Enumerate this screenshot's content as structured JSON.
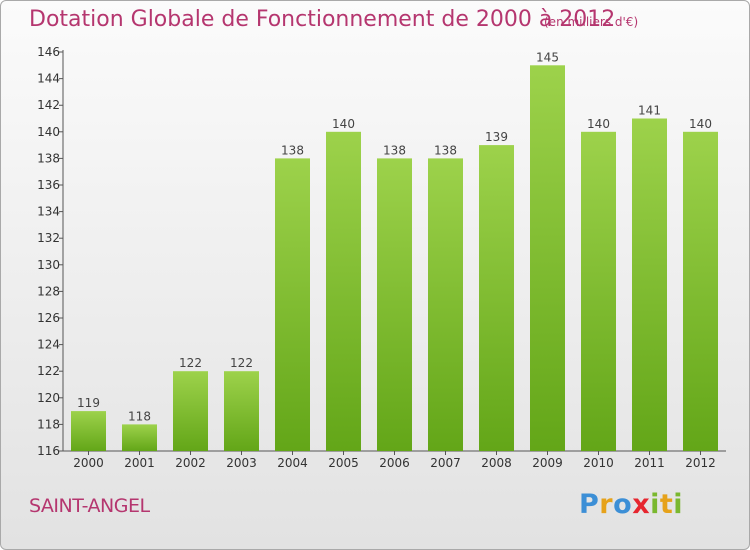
{
  "title": "Dotation Globale de Fonctionnement de 2000 à 2012",
  "subtitle": "(en milliers d'€)",
  "place": "SAINT-ANGEL",
  "brand": {
    "letters": [
      {
        "char": "P",
        "color": "#3c8fd6"
      },
      {
        "char": "r",
        "color": "#e6a21a"
      },
      {
        "char": "o",
        "color": "#3c8fd6"
      },
      {
        "char": "x",
        "color": "#e6262f"
      },
      {
        "char": "i",
        "color": "#7ab82f"
      },
      {
        "char": "t",
        "color": "#e6a21a"
      },
      {
        "char": "i",
        "color": "#7ab82f"
      }
    ]
  },
  "colors": {
    "bar_light": "#9dd24b",
    "bar_dark": "#63a618",
    "accent": "#b5366f"
  },
  "chart_data": {
    "type": "bar",
    "title": "Dotation Globale de Fonctionnement de 2000 à 2012",
    "subtitle": "(en milliers d'€)",
    "categories": [
      "2000",
      "2001",
      "2002",
      "2003",
      "2004",
      "2005",
      "2006",
      "2007",
      "2008",
      "2009",
      "2010",
      "2011",
      "2012"
    ],
    "values": [
      119,
      118,
      122,
      122,
      138,
      140,
      138,
      138,
      139,
      145,
      140,
      141,
      140
    ],
    "ylim": [
      116,
      146
    ],
    "yticks": [
      116,
      118,
      120,
      122,
      124,
      126,
      128,
      130,
      132,
      134,
      136,
      138,
      140,
      142,
      144,
      146
    ],
    "grid": false,
    "legend": "none"
  }
}
